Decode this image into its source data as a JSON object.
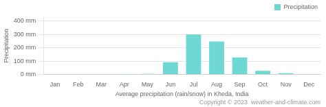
{
  "chart_data": {
    "type": "bar",
    "categories": [
      "Jan",
      "Feb",
      "Mar",
      "Apr",
      "May",
      "Jun",
      "Jul",
      "Aug",
      "Sep",
      "Oct",
      "Nov",
      "Dec"
    ],
    "series": [
      {
        "name": "Precipitation",
        "color": "#6ED8D4",
        "values": [
          3,
          2,
          3,
          2,
          4,
          92,
          300,
          248,
          128,
          27,
          10,
          3
        ]
      }
    ],
    "ylabel": "Precipitation",
    "xlabel": "Average precipitation (rain/snow) in Kheda, India",
    "annotations": [
      "Copyright © 2023  weather-and-climate.com"
    ],
    "ylim": [
      0,
      430
    ],
    "yticks": [
      {
        "value": 0,
        "label": "0 mm"
      },
      {
        "value": 100,
        "label": "100 mm"
      },
      {
        "value": 200,
        "label": "200 mm"
      },
      {
        "value": 300,
        "label": "300 mm"
      },
      {
        "value": 400,
        "label": "400 mm"
      }
    ],
    "grid": true,
    "legend": "upper right"
  }
}
